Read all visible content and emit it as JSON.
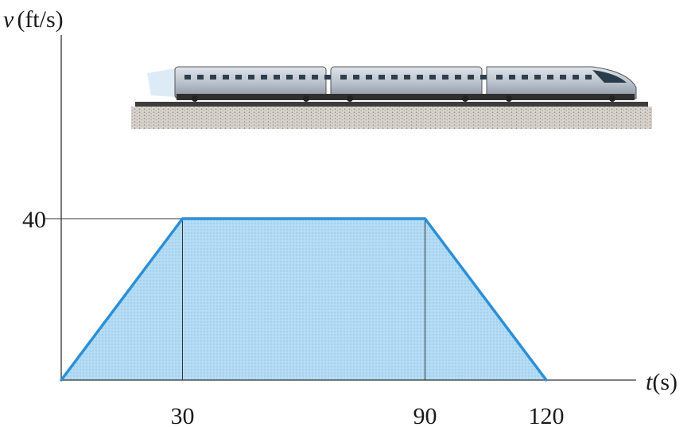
{
  "chart_data": {
    "type": "area",
    "xlabel_var": "t",
    "xlabel_unit": "(s)",
    "ylabel_var": "v",
    "ylabel_unit": "(ft/s)",
    "x": [
      0,
      30,
      90,
      120
    ],
    "y": [
      0,
      40,
      40,
      0
    ],
    "x_ticks": [
      30,
      90,
      120
    ],
    "x_tick_labels": [
      "30",
      "90",
      "120"
    ],
    "y_ticks": [
      40
    ],
    "y_tick_labels": [
      "40"
    ],
    "xlim": [
      0,
      120
    ],
    "ylim": [
      0,
      40
    ],
    "grid": false,
    "colors": {
      "line": "#2b8fd6",
      "fill": "#a9d6f2",
      "axis": "#333333"
    }
  },
  "illustration": {
    "icon": "train-icon"
  }
}
